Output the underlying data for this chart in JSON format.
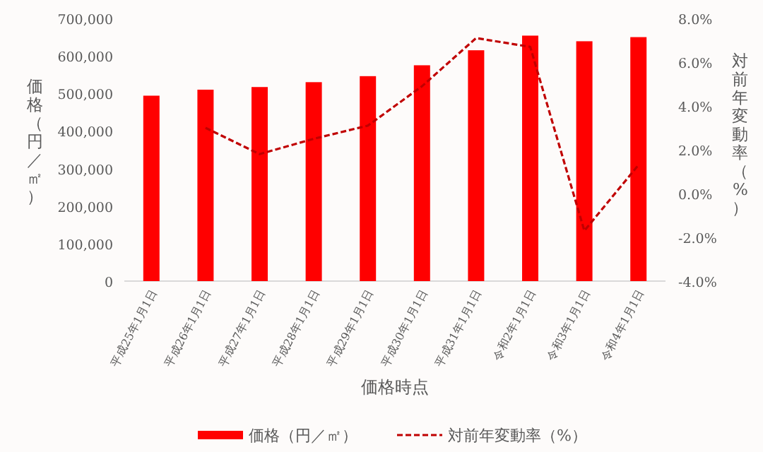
{
  "chart_data": {
    "type": "bar",
    "xlabel": "価格時点",
    "ylabel": "価格（円／㎡）",
    "y2label": "対前年変動率（%）",
    "categories": [
      "平成25年1月1日",
      "平成26年1月1日",
      "平成27年1月1日",
      "平成28年1月1日",
      "平成29年1月1日",
      "平成30年1月1日",
      "平成31年1月1日",
      "令和2年1月1日",
      "令和3年1月1日",
      "令和4年1月1日"
    ],
    "series": [
      {
        "name": "価格（円／㎡）",
        "color": "#ff0000",
        "values": [
          494000,
          510000,
          517000,
          530000,
          546000,
          575000,
          615000,
          654000,
          639000,
          650000
        ]
      },
      {
        "name": "対前年変動率（%）",
        "type": "line",
        "axis": "y2",
        "color": "#c00000",
        "line_style": "dashed",
        "marker": "none",
        "values": [
          null,
          3.0,
          1.8,
          2.5,
          3.1,
          4.9,
          7.1,
          6.7,
          -1.7,
          1.3
        ]
      }
    ],
    "ylim": [
      0,
      700000
    ],
    "yticks": [
      {
        "value": 0,
        "label": "0"
      },
      {
        "value": 100000,
        "label": "100,000"
      },
      {
        "value": 200000,
        "label": "200,000"
      },
      {
        "value": 300000,
        "label": "300,000"
      },
      {
        "value": 400000,
        "label": "400,000"
      },
      {
        "value": 500000,
        "label": "500,000"
      },
      {
        "value": 600000,
        "label": "600,000"
      },
      {
        "value": 700000,
        "label": "700,000"
      }
    ],
    "y2lim": [
      -4,
      8
    ],
    "y2ticks": [
      {
        "value": -4,
        "label": "-4.0%"
      },
      {
        "value": -2,
        "label": "-2.0%"
      },
      {
        "value": 0,
        "label": "0.0%"
      },
      {
        "value": 2,
        "label": "2.0%"
      },
      {
        "value": 4,
        "label": "4.0%"
      },
      {
        "value": 6,
        "label": "6.0%"
      },
      {
        "value": 8,
        "label": "8.0%"
      }
    ],
    "legend": "bottom",
    "grid": false
  }
}
